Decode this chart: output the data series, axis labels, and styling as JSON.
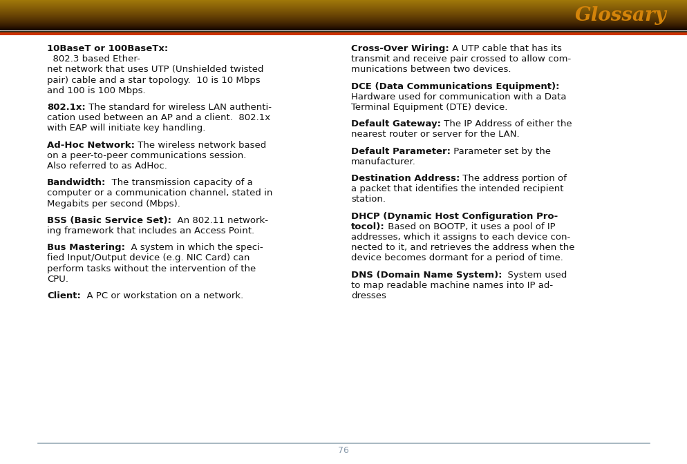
{
  "title": "Glossary",
  "title_color": "#D4840A",
  "page_number": "76",
  "background_color": "#FFFFFF",
  "separator_color": "#9AABB8",
  "left_entries": [
    {
      "term": "10BaseT or 100BaseTx:",
      "lines": [
        [
          "bold",
          "10BaseT or 100BaseTx:"
        ],
        [
          "normal",
          "  802.3 based Ether-"
        ],
        [
          "normal",
          "net network that uses UTP (Unshielded twisted"
        ],
        [
          "normal",
          "pair) cable and a star topology.  10 is 10 Mbps"
        ],
        [
          "normal",
          "and 100 is 100 Mbps."
        ]
      ]
    },
    {
      "term": "802.1x:",
      "lines": [
        [
          "bold_inline",
          "802.1x:",
          " The standard for wireless LAN authenti-"
        ],
        [
          "normal",
          "cation used between an AP and a client.  802.1x"
        ],
        [
          "normal",
          "with EAP will initiate key handling."
        ]
      ]
    },
    {
      "term": "Ad-Hoc Network:",
      "lines": [
        [
          "bold_inline",
          "Ad-Hoc Network:",
          " The wireless network based"
        ],
        [
          "normal",
          "on a peer-to-peer communications session."
        ],
        [
          "normal",
          "Also referred to as AdHoc."
        ]
      ]
    },
    {
      "term": "Bandwidth:",
      "lines": [
        [
          "bold_inline",
          "Bandwidth:",
          "  The transmission capacity of a"
        ],
        [
          "normal",
          "computer or a communication channel, stated in"
        ],
        [
          "normal",
          "Megabits per second (Mbps)."
        ]
      ]
    },
    {
      "term": "BSS (Basic Service Set):",
      "lines": [
        [
          "bold_inline",
          "BSS (Basic Service Set):",
          "  An 802.11 network-"
        ],
        [
          "normal",
          "ing framework that includes an Access Point."
        ]
      ]
    },
    {
      "term": "Bus Mastering:",
      "lines": [
        [
          "bold_inline",
          "Bus Mastering:",
          "  A system in which the speci-"
        ],
        [
          "normal",
          "fied Input/Output device (e.g. NIC Card) can"
        ],
        [
          "normal",
          "perform tasks without the intervention of the"
        ],
        [
          "normal",
          "CPU."
        ]
      ]
    },
    {
      "term": "Client:",
      "lines": [
        [
          "bold_inline",
          "Client:",
          "  A PC or workstation on a network."
        ]
      ]
    }
  ],
  "right_entries": [
    {
      "term": "Cross-Over Wiring:",
      "lines": [
        [
          "bold_inline",
          "Cross-Over Wiring:",
          " A UTP cable that has its"
        ],
        [
          "normal",
          "transmit and receive pair crossed to allow com-"
        ],
        [
          "normal",
          "munications between two devices."
        ]
      ]
    },
    {
      "term": "DCE (Data Communications Equipment):",
      "lines": [
        [
          "bold",
          "DCE (Data Communications Equipment):"
        ],
        [
          "normal",
          "Hardware used for communication with a Data"
        ],
        [
          "normal",
          "Terminal Equipment (DTE) device."
        ]
      ]
    },
    {
      "term": "Default Gateway:",
      "lines": [
        [
          "bold_inline",
          "Default Gateway:",
          " The IP Address of either the"
        ],
        [
          "normal",
          "nearest router or server for the LAN."
        ]
      ]
    },
    {
      "term": "Default Parameter:",
      "lines": [
        [
          "bold_inline",
          "Default Parameter:",
          " Parameter set by the"
        ],
        [
          "normal",
          "manufacturer."
        ]
      ]
    },
    {
      "term": "Destination Address:",
      "lines": [
        [
          "bold_inline",
          "Destination Address:",
          " The address portion of"
        ],
        [
          "normal",
          "a packet that identifies the intended recipient"
        ],
        [
          "normal",
          "station."
        ]
      ]
    },
    {
      "term": "DHCP (Dynamic Host Configuration Pro-tocol):",
      "lines": [
        [
          "bold",
          "DHCP (Dynamic Host Configuration Pro-"
        ],
        [
          "bold_inline",
          "tocol):",
          " Based on BOOTP, it uses a pool of IP"
        ],
        [
          "normal",
          "addresses, which it assigns to each device con-"
        ],
        [
          "normal",
          "nected to it, and retrieves the address when the"
        ],
        [
          "normal",
          "device becomes dormant for a period of time."
        ]
      ]
    },
    {
      "term": "DNS (Domain Name System):",
      "lines": [
        [
          "bold_inline",
          "DNS (Domain Name System):",
          "  System used"
        ],
        [
          "normal",
          "to map readable machine names into IP ad-"
        ],
        [
          "normal",
          "dresses"
        ]
      ]
    }
  ]
}
